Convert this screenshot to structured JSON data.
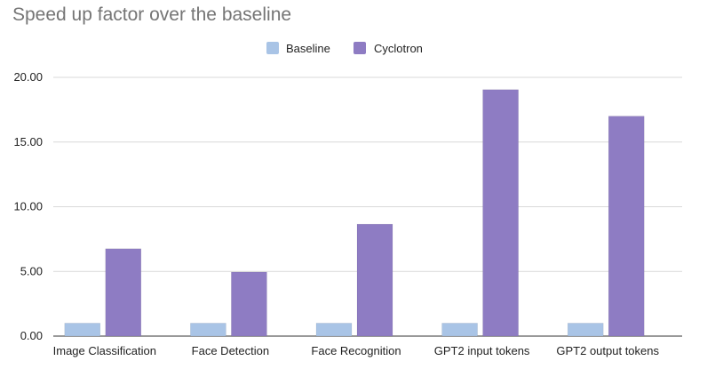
{
  "chart_data": {
    "type": "bar",
    "title": "Speed up factor over the baseline",
    "categories": [
      "Image Classification",
      "Face Detection",
      "Face Recognition",
      "GPT2 input tokens",
      "GPT2 output tokens"
    ],
    "series": [
      {
        "name": "Baseline",
        "values": [
          1,
          1,
          1,
          1,
          1
        ],
        "color": "#a9c4e6"
      },
      {
        "name": "Cyclotron",
        "values": [
          6.75,
          4.95,
          8.65,
          19.05,
          17.0
        ],
        "color": "#8e7cc3"
      }
    ],
    "ylim": [
      0,
      20
    ],
    "yticks": [
      "0.00",
      "5.00",
      "10.00",
      "15.00",
      "20.00"
    ],
    "ytick_values": [
      0,
      5,
      10,
      15,
      20
    ],
    "grid": true,
    "legend_position": "top-center"
  }
}
